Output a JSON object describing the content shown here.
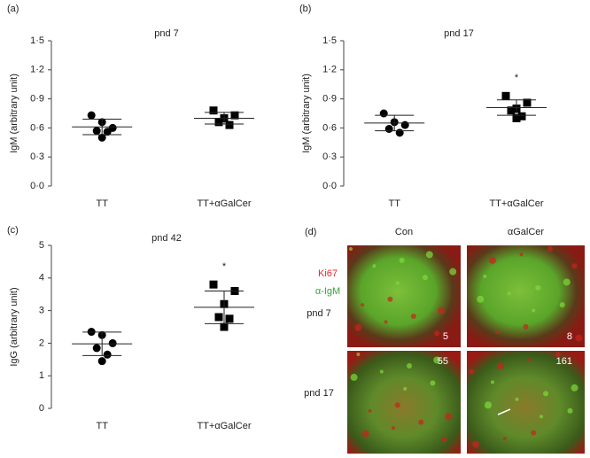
{
  "chart_data": [
    {
      "type": "scatter",
      "panel_label": "(a)",
      "title": "pnd 7",
      "ylabel": "IgM (arbitrary unit)",
      "categories": [
        "TT",
        "TT+αGalCer"
      ],
      "ylim": [
        0,
        1.5
      ],
      "yticks": [
        {
          "value": 0,
          "label": "0·0"
        },
        {
          "value": 0.3,
          "label": "0·3"
        },
        {
          "value": 0.6,
          "label": "0·6"
        },
        {
          "value": 0.9,
          "label": "0·9"
        },
        {
          "value": 1.2,
          "label": "1·2"
        },
        {
          "value": 1.5,
          "label": "1·5"
        }
      ],
      "series": [
        {
          "marker": "circle",
          "color": "#000000",
          "values": [
            0.73,
            0.66,
            0.6,
            0.57,
            0.56,
            0.5
          ],
          "mean": 0.61,
          "sd": 0.08
        },
        {
          "marker": "square",
          "color": "#000000",
          "values": [
            0.78,
            0.73,
            0.7,
            0.66,
            0.63
          ],
          "mean": 0.7,
          "sd": 0.06
        }
      ]
    },
    {
      "type": "scatter",
      "panel_label": "(b)",
      "title": "pnd 17",
      "ylabel": "IgM (arbitrary unit)",
      "categories": [
        "TT",
        "TT+αGalCer"
      ],
      "ylim": [
        0,
        1.5
      ],
      "yticks": [
        {
          "value": 0,
          "label": "0·0"
        },
        {
          "value": 0.3,
          "label": "0·3"
        },
        {
          "value": 0.6,
          "label": "0·6"
        },
        {
          "value": 0.9,
          "label": "0·9"
        },
        {
          "value": 1.2,
          "label": "1·2"
        },
        {
          "value": 1.5,
          "label": "1·5"
        }
      ],
      "series": [
        {
          "marker": "circle",
          "color": "#000000",
          "values": [
            0.75,
            0.66,
            0.63,
            0.59,
            0.55
          ],
          "mean": 0.65,
          "sd": 0.08
        },
        {
          "marker": "square",
          "color": "#000000",
          "values": [
            0.93,
            0.86,
            0.8,
            0.78,
            0.72,
            0.7
          ],
          "mean": 0.81,
          "sd": 0.08,
          "significance": "*"
        }
      ]
    },
    {
      "type": "scatter",
      "panel_label": "(c)",
      "title": "pnd 42",
      "ylabel": "IgG (arbitrary unit)",
      "categories": [
        "TT",
        "TT+αGalCer"
      ],
      "ylim": [
        0,
        5
      ],
      "yticks": [
        0,
        1,
        2,
        3,
        4,
        5
      ],
      "series": [
        {
          "marker": "circle",
          "color": "#000000",
          "values": [
            2.35,
            2.25,
            2.0,
            1.85,
            1.65,
            1.45
          ],
          "mean": 1.98,
          "sd": 0.36
        },
        {
          "marker": "square",
          "color": "#000000",
          "values": [
            3.8,
            3.6,
            3.2,
            2.8,
            2.75,
            2.5
          ],
          "mean": 3.1,
          "sd": 0.5,
          "significance": "*"
        }
      ]
    }
  ],
  "image_panel": {
    "panel_label": "(d)",
    "columns": [
      "Con",
      "αGalCer"
    ],
    "stains": [
      {
        "text": "Ki67",
        "color": "#e8262a"
      },
      {
        "text": "α-IgM",
        "color": "#2ea82e"
      }
    ],
    "rows": [
      {
        "label": "pnd 7",
        "counts": [
          5,
          8
        ]
      },
      {
        "label": "pnd 17",
        "counts": [
          55,
          161
        ]
      }
    ]
  }
}
